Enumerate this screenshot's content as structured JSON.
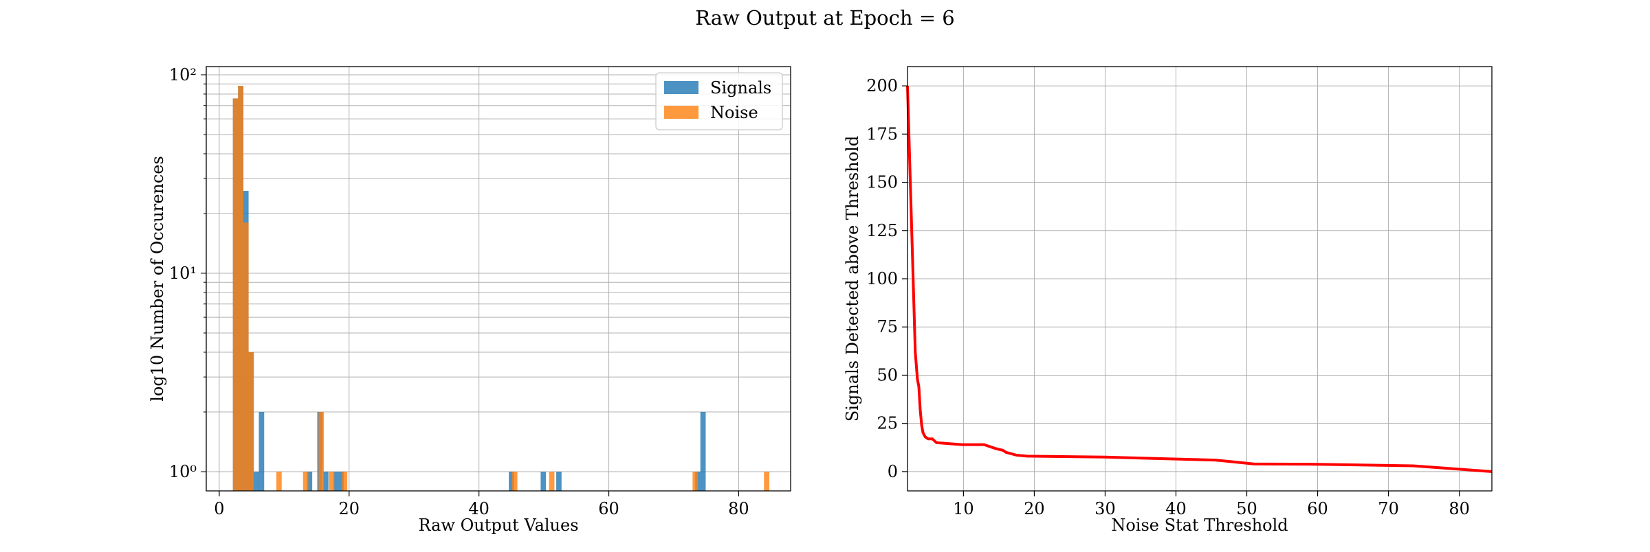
{
  "figure": {
    "suptitle": "Raw Output at Epoch = 6"
  },
  "colors": {
    "signals": "#1f77b4",
    "noise": "#ff7f0e",
    "line": "#ff0000",
    "grid": "#b0b0b0"
  },
  "chart_data": [
    {
      "type": "bar",
      "subtype": "histogram",
      "xlabel": "Raw Output Values",
      "ylabel": "log10 Number of Occurences",
      "xlim": [
        -2,
        88
      ],
      "ylim": [
        0.8,
        110
      ],
      "yscale": "log",
      "grid": true,
      "legend_position": "top-right",
      "x_ticks": [
        0,
        20,
        40,
        60,
        80
      ],
      "x_tick_labels": [
        "0",
        "20",
        "40",
        "60",
        "80"
      ],
      "y_ticks": [
        1,
        10,
        100
      ],
      "y_tick_labels": [
        "10⁰",
        "10¹",
        "10²"
      ],
      "bin_width": 0.82,
      "series": [
        {
          "name": "Signals",
          "color": "#1f77b4",
          "bins": [
            {
              "x": 2.1,
              "count": 76
            },
            {
              "x": 2.9,
              "count": 88
            },
            {
              "x": 3.7,
              "count": 26
            },
            {
              "x": 4.5,
              "count": 4
            },
            {
              "x": 5.3,
              "count": 1
            },
            {
              "x": 6.1,
              "count": 2
            },
            {
              "x": 13.5,
              "count": 1
            },
            {
              "x": 15.1,
              "count": 2
            },
            {
              "x": 16.0,
              "count": 1
            },
            {
              "x": 17.6,
              "count": 1
            },
            {
              "x": 18.4,
              "count": 1
            },
            {
              "x": 44.6,
              "count": 1
            },
            {
              "x": 49.5,
              "count": 1
            },
            {
              "x": 51.9,
              "count": 1
            },
            {
              "x": 73.3,
              "count": 1
            },
            {
              "x": 74.1,
              "count": 2
            }
          ]
        },
        {
          "name": "Noise",
          "color": "#ff7f0e",
          "bins": [
            {
              "x": 2.1,
              "count": 76
            },
            {
              "x": 2.9,
              "count": 88
            },
            {
              "x": 3.7,
              "count": 18
            },
            {
              "x": 4.5,
              "count": 4
            },
            {
              "x": 8.8,
              "count": 1
            },
            {
              "x": 12.9,
              "count": 1
            },
            {
              "x": 15.3,
              "count": 2
            },
            {
              "x": 16.9,
              "count": 1
            },
            {
              "x": 18.9,
              "count": 1
            },
            {
              "x": 45.1,
              "count": 1
            },
            {
              "x": 50.8,
              "count": 1
            },
            {
              "x": 72.9,
              "count": 1
            },
            {
              "x": 83.9,
              "count": 1
            }
          ]
        }
      ]
    },
    {
      "type": "line",
      "xlabel": "Noise Stat Threshold",
      "ylabel": "Signals Detected above Threshold",
      "xlim": [
        2.1,
        84.6
      ],
      "ylim": [
        -10,
        210
      ],
      "grid": true,
      "x_ticks": [
        10,
        20,
        30,
        40,
        50,
        60,
        70,
        80
      ],
      "x_tick_labels": [
        "10",
        "20",
        "30",
        "40",
        "50",
        "60",
        "70",
        "80"
      ],
      "y_ticks": [
        0,
        25,
        50,
        75,
        100,
        125,
        150,
        175,
        200
      ],
      "y_tick_labels": [
        "0",
        "25",
        "50",
        "75",
        "100",
        "125",
        "150",
        "175",
        "200"
      ],
      "series": [
        {
          "color": "#ff0000",
          "x": [
            2.1,
            2.5,
            2.9,
            3.2,
            3.5,
            3.7,
            3.9,
            4.1,
            4.3,
            4.6,
            5.0,
            5.6,
            6.2,
            8.0,
            9.8,
            12.9,
            14.5,
            15.6,
            16.0,
            17.5,
            19.0,
            30.0,
            45.5,
            51.0,
            60.0,
            73.5,
            84.6
          ],
          "y": [
            200,
            150,
            100,
            62,
            48,
            44,
            32,
            24,
            20,
            18,
            17,
            17,
            15,
            14.5,
            14,
            14,
            12,
            11,
            10,
            8.5,
            8,
            7.5,
            6,
            4,
            3.8,
            3,
            0
          ]
        }
      ]
    }
  ]
}
